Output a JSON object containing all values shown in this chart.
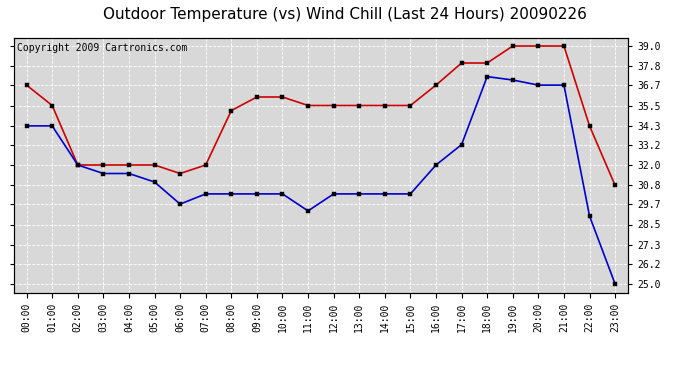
{
  "title": "Outdoor Temperature (vs) Wind Chill (Last 24 Hours) 20090226",
  "copyright": "Copyright 2009 Cartronics.com",
  "hours": [
    "00:00",
    "01:00",
    "02:00",
    "03:00",
    "04:00",
    "05:00",
    "06:00",
    "07:00",
    "08:00",
    "09:00",
    "10:00",
    "11:00",
    "12:00",
    "13:00",
    "14:00",
    "15:00",
    "16:00",
    "17:00",
    "18:00",
    "19:00",
    "20:00",
    "21:00",
    "22:00",
    "23:00"
  ],
  "outdoor_temp": [
    36.7,
    35.5,
    32.0,
    32.0,
    32.0,
    32.0,
    31.5,
    32.0,
    35.2,
    36.0,
    36.0,
    35.5,
    35.5,
    35.5,
    35.5,
    35.5,
    36.7,
    38.0,
    38.0,
    39.0,
    39.0,
    39.0,
    34.3,
    30.8
  ],
  "wind_chill": [
    34.3,
    34.3,
    32.0,
    31.5,
    31.5,
    31.0,
    29.7,
    30.3,
    30.3,
    30.3,
    30.3,
    29.3,
    30.3,
    30.3,
    30.3,
    30.3,
    32.0,
    33.2,
    37.2,
    37.0,
    36.7,
    36.7,
    29.0,
    25.0
  ],
  "temp_color": "#cc0000",
  "chill_color": "#0000cc",
  "background_color": "#ffffff",
  "plot_bg_color": "#d8d8d8",
  "grid_color": "#ffffff",
  "ylim": [
    24.5,
    39.5
  ],
  "yticks": [
    25.0,
    26.2,
    27.3,
    28.5,
    29.7,
    30.8,
    32.0,
    33.2,
    34.3,
    35.5,
    36.7,
    37.8,
    39.0
  ],
  "title_fontsize": 11,
  "copyright_fontsize": 7,
  "tick_fontsize": 7
}
